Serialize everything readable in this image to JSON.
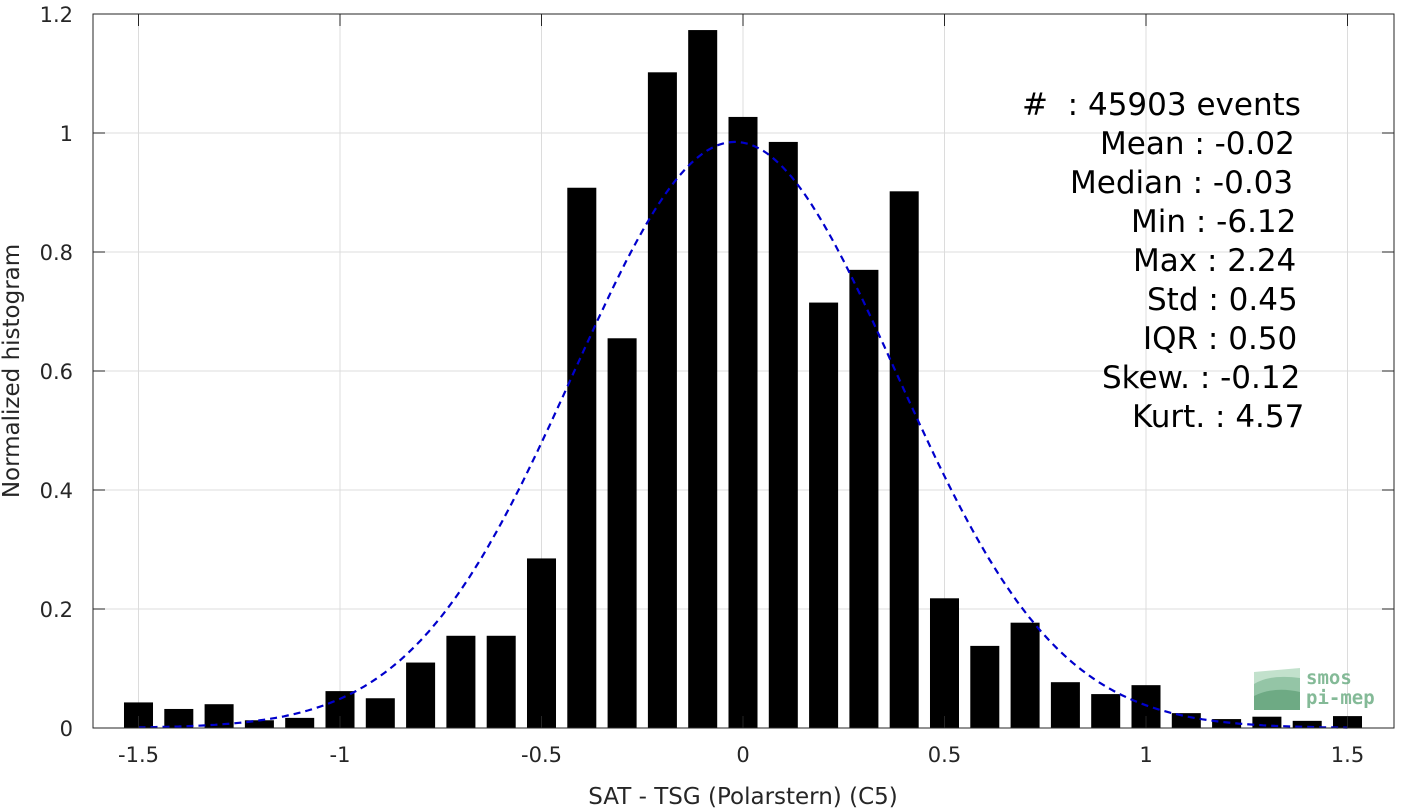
{
  "chart_data": {
    "type": "bar",
    "xlabel": "SAT - TSG (Polarstern) (C5)",
    "ylabel": "Normalized histogram",
    "xlim": [
      -1.5,
      1.5
    ],
    "ylim": [
      0,
      1.2
    ],
    "xticks": [
      "-1.5",
      "-1",
      "-0.5",
      "0",
      "0.5",
      "1",
      "1.5"
    ],
    "yticks": [
      "0",
      "0.2",
      "0.4",
      "0.6",
      "0.8",
      "1",
      "1.2"
    ],
    "grid": true,
    "bar_color": "#000000",
    "curve_color": "#0000cc",
    "x": [
      -1.5,
      -1.4,
      -1.3,
      -1.2,
      -1.1,
      -1.0,
      -0.9,
      -0.8,
      -0.7,
      -0.6,
      -0.5,
      -0.4,
      -0.3,
      -0.2,
      -0.1,
      0.0,
      0.1,
      0.2,
      0.3,
      0.4,
      0.5,
      0.6,
      0.7,
      0.8,
      0.9,
      1.0,
      1.1,
      1.2,
      1.3,
      1.4,
      1.5
    ],
    "values": [
      0.043,
      0.032,
      0.04,
      0.013,
      0.017,
      0.062,
      0.05,
      0.11,
      0.155,
      0.155,
      0.285,
      0.908,
      0.655,
      1.102,
      1.173,
      1.027,
      0.985,
      0.715,
      0.77,
      0.902,
      0.218,
      0.138,
      0.177,
      0.077,
      0.057,
      0.072,
      0.025,
      0.015,
      0.019,
      0.012,
      0.02
    ],
    "fit": {
      "type": "normal",
      "mean": -0.02,
      "std": 0.4,
      "peak": 0.985,
      "style": "dashed"
    }
  },
  "stats": {
    "events": "#  : 45903 events",
    "mean": "Mean : -0.02",
    "median": "Median : -0.03",
    "min": "Min : -6.12",
    "max": "Max : 2.24",
    "std": "Std : 0.45",
    "iqr": "IQR : 0.50",
    "skew": "Skew. : -0.12",
    "kurt": "Kurt. : 4.57"
  },
  "logo": {
    "line1": "smos",
    "line2": "pi-mep"
  }
}
